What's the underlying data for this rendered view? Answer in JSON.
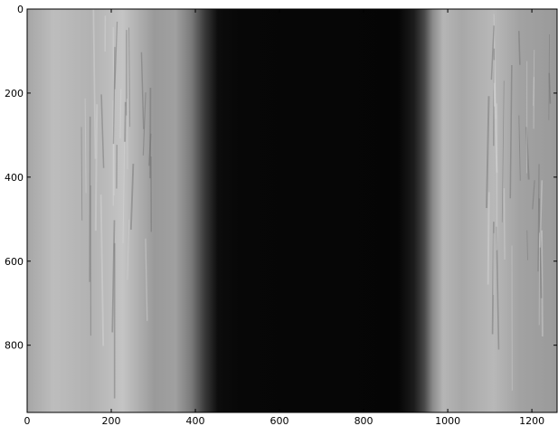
{
  "chart_data": {
    "type": "heatmap",
    "colormap": "gray",
    "title": "",
    "xlabel": "",
    "ylabel": "",
    "xlim": [
      0,
      1260
    ],
    "ylim": [
      960,
      0
    ],
    "xticks": [
      0,
      200,
      400,
      600,
      800,
      1000,
      1200
    ],
    "yticks": [
      0,
      200,
      400,
      600,
      800
    ],
    "xtick_labels": [
      "0",
      "200",
      "400",
      "600",
      "800",
      "1000",
      "1200"
    ],
    "ytick_labels": [
      "0",
      "200",
      "400",
      "600",
      "800"
    ],
    "grid": false,
    "description_bands": [
      {
        "x_start": 0,
        "x_end": 380,
        "brightness": "light-gray textured"
      },
      {
        "x_start": 380,
        "x_end": 460,
        "brightness": "gradient to black"
      },
      {
        "x_start": 460,
        "x_end": 900,
        "brightness": "near black"
      },
      {
        "x_start": 900,
        "x_end": 960,
        "brightness": "gradient to gray"
      },
      {
        "x_start": 960,
        "x_end": 1260,
        "brightness": "light-gray textured"
      }
    ]
  }
}
